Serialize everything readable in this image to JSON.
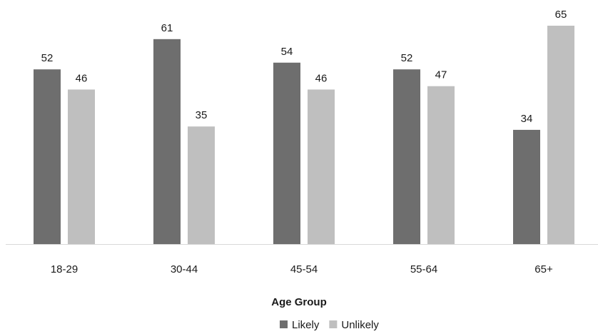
{
  "chart_data": {
    "type": "bar",
    "title": "",
    "xlabel": "Age Group",
    "ylabel": "",
    "categories": [
      "18-29",
      "30-44",
      "45-54",
      "55-64",
      "65+"
    ],
    "series": [
      {
        "name": "Likely",
        "values": [
          52,
          61,
          54,
          52,
          34
        ],
        "color": "#6e6e6e"
      },
      {
        "name": "Unlikely",
        "values": [
          46,
          35,
          46,
          47,
          65
        ],
        "color": "#bfbfbf"
      }
    ],
    "ylim": [
      0,
      65
    ],
    "grid": false,
    "data_labels": true,
    "legend_position": "bottom-center",
    "axis_color": "#d9d9d9"
  }
}
